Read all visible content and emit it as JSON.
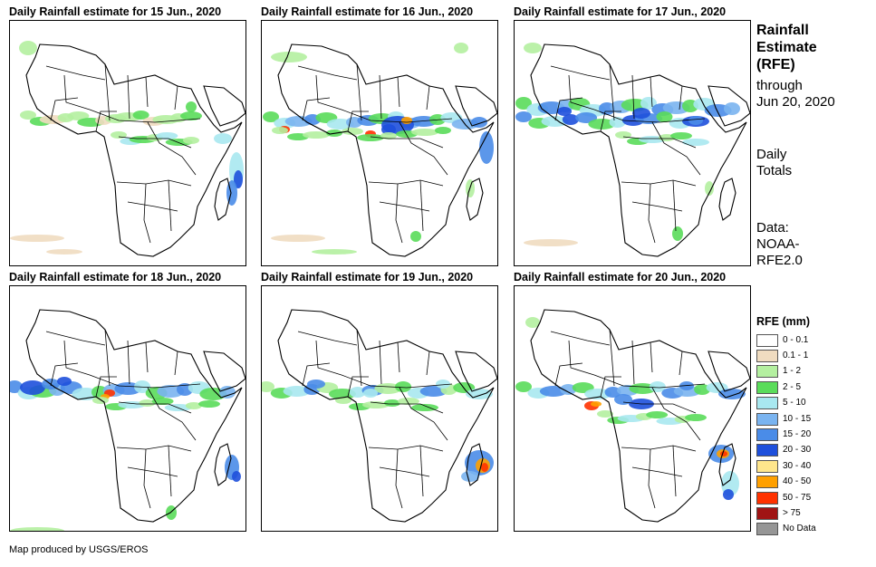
{
  "panels": [
    {
      "title": "Daily Rainfall estimate for 15 Jun., 2020"
    },
    {
      "title": "Daily Rainfall estimate for 16 Jun., 2020"
    },
    {
      "title": "Daily Rainfall estimate for 17 Jun., 2020"
    },
    {
      "title": "Daily Rainfall estimate for 18 Jun., 2020"
    },
    {
      "title": "Daily Rainfall estimate for 19 Jun., 2020"
    },
    {
      "title": "Daily Rainfall estimate for 20 Jun., 2020"
    }
  ],
  "side": {
    "title_lines": [
      "Rainfall",
      "Estimate",
      "(RFE)"
    ],
    "sub_lines": [
      "through",
      "Jun 20, 2020"
    ],
    "daily_lines": [
      "Daily",
      "Totals"
    ],
    "data_lines": [
      "Data:",
      "NOAA-",
      "RFE2.0"
    ]
  },
  "legend": {
    "title": "RFE (mm)",
    "items": [
      {
        "label": "0 - 0.1",
        "color": "#ffffff"
      },
      {
        "label": "0.1 - 1",
        "color": "#f0dcc0"
      },
      {
        "label": "1 - 2",
        "color": "#b4f0a0"
      },
      {
        "label": "2 - 5",
        "color": "#5adc5a"
      },
      {
        "label": "5 - 10",
        "color": "#a8e8f0"
      },
      {
        "label": "10 - 15",
        "color": "#7ab4f0"
      },
      {
        "label": "15 - 20",
        "color": "#4a8ce8"
      },
      {
        "label": "20 - 30",
        "color": "#1e50dc"
      },
      {
        "label": "30 - 40",
        "color": "#ffe68c"
      },
      {
        "label": "40 - 50",
        "color": "#ffa000"
      },
      {
        "label": "50 - 75",
        "color": "#ff3200"
      },
      {
        "label": "> 75",
        "color": "#a01414"
      },
      {
        "label": "No Data",
        "color": "#969696"
      }
    ]
  },
  "credit": "Map produced by USGS/EROS"
}
